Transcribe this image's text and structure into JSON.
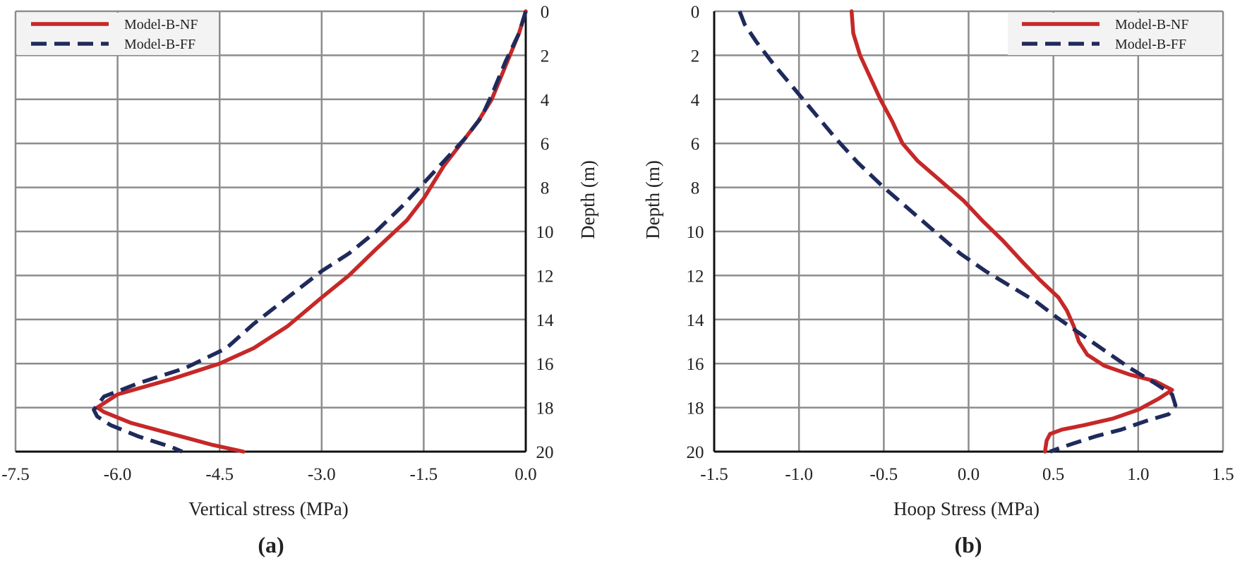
{
  "chart_data": [
    {
      "type": "line",
      "panel_label": "(a)",
      "xlabel": "Vertical stress (MPa)",
      "ylabel": "Depth (m)",
      "xlim": [
        -7.5,
        0.0
      ],
      "ylim": [
        0,
        20
      ],
      "y_inverted": true,
      "y_axis_side": "right",
      "x_ticks": [
        "-7.5",
        "-6.0",
        "-4.5",
        "-3.0",
        "-1.5",
        "0.0"
      ],
      "y_ticks": [
        "0",
        "2",
        "4",
        "6",
        "8",
        "10",
        "12",
        "14",
        "16",
        "18",
        "20"
      ],
      "grid": true,
      "legend_position": "top-left",
      "series": [
        {
          "name": "Model-B-NF",
          "color": "#c62828",
          "style": "solid",
          "x": [
            0.0,
            -0.1,
            -0.3,
            -0.5,
            -0.7,
            -0.95,
            -1.2,
            -1.5,
            -1.75,
            -2.2,
            -2.6,
            -3.0,
            -3.5,
            -4.0,
            -4.5,
            -5.2,
            -6.0,
            -6.3,
            -6.2,
            -5.8,
            -5.2,
            -4.6,
            -4.15
          ],
          "y": [
            0,
            1,
            2.5,
            4,
            5,
            6,
            7,
            8.5,
            9.5,
            10.8,
            12,
            13,
            14.3,
            15.3,
            16,
            16.7,
            17.4,
            18.0,
            18.2,
            18.7,
            19.2,
            19.7,
            20
          ]
        },
        {
          "name": "Model-B-FF",
          "color": "#1f2a5c",
          "style": "dashed",
          "x": [
            0.0,
            -0.1,
            -0.3,
            -0.5,
            -0.65,
            -0.9,
            -1.2,
            -1.5,
            -1.8,
            -2.2,
            -2.6,
            -3.0,
            -3.5,
            -4.0,
            -4.4,
            -5.0,
            -5.7,
            -6.2,
            -6.35,
            -6.3,
            -6.1,
            -5.7,
            -5.2,
            -5.05
          ],
          "y": [
            0,
            1,
            2.3,
            3.8,
            4.8,
            5.8,
            6.8,
            7.8,
            8.8,
            10,
            11,
            11.8,
            13,
            14.2,
            15.3,
            16.2,
            16.9,
            17.5,
            18.1,
            18.4,
            18.8,
            19.3,
            19.8,
            20
          ]
        }
      ]
    },
    {
      "type": "line",
      "panel_label": "(b)",
      "xlabel": "Hoop Stress (MPa)",
      "ylabel": "Depth (m)",
      "xlim": [
        -1.5,
        1.5
      ],
      "ylim": [
        0,
        20
      ],
      "y_inverted": true,
      "y_axis_side": "left",
      "x_ticks": [
        "-1.5",
        "-1.0",
        "-0.5",
        "0.0",
        "0.5",
        "1.0",
        "1.5"
      ],
      "y_ticks": [
        "0",
        "2",
        "4",
        "6",
        "8",
        "10",
        "12",
        "14",
        "16",
        "18",
        "20"
      ],
      "grid": true,
      "legend_position": "top-right",
      "series": [
        {
          "name": "Model-B-NF",
          "color": "#c62828",
          "style": "solid",
          "x": [
            -0.69,
            -0.68,
            -0.64,
            -0.58,
            -0.52,
            -0.45,
            -0.39,
            -0.3,
            -0.15,
            -0.03,
            0.08,
            0.2,
            0.32,
            0.42,
            0.53,
            0.58,
            0.62,
            0.65,
            0.7,
            0.8,
            0.95,
            1.1,
            1.2,
            1.12,
            1.0,
            0.85,
            0.68,
            0.55,
            0.48,
            0.46,
            0.45
          ],
          "y": [
            0,
            1,
            2,
            3,
            4,
            5,
            6,
            6.8,
            7.8,
            8.6,
            9.5,
            10.4,
            11.4,
            12.2,
            13,
            13.6,
            14.3,
            15,
            15.6,
            16.1,
            16.5,
            16.8,
            17.2,
            17.6,
            18.1,
            18.5,
            18.8,
            19.0,
            19.2,
            19.5,
            20
          ]
        },
        {
          "name": "Model-B-FF",
          "color": "#1f2a5c",
          "style": "dashed",
          "x": [
            -1.35,
            -1.32,
            -1.25,
            -1.15,
            -1.03,
            -0.9,
            -0.78,
            -0.65,
            -0.5,
            -0.35,
            -0.2,
            -0.05,
            0.1,
            0.25,
            0.4,
            0.52,
            0.65,
            0.8,
            0.95,
            1.1,
            1.2,
            1.22,
            1.18,
            1.05,
            0.9,
            0.75,
            0.63,
            0.55,
            0.48
          ],
          "y": [
            0,
            0.6,
            1.4,
            2.4,
            3.5,
            4.7,
            5.8,
            6.9,
            8,
            9,
            10,
            11,
            11.8,
            12.5,
            13.2,
            13.9,
            14.6,
            15.4,
            16.2,
            16.9,
            17.4,
            17.9,
            18.3,
            18.6,
            19.0,
            19.3,
            19.6,
            19.8,
            20
          ]
        }
      ]
    }
  ]
}
